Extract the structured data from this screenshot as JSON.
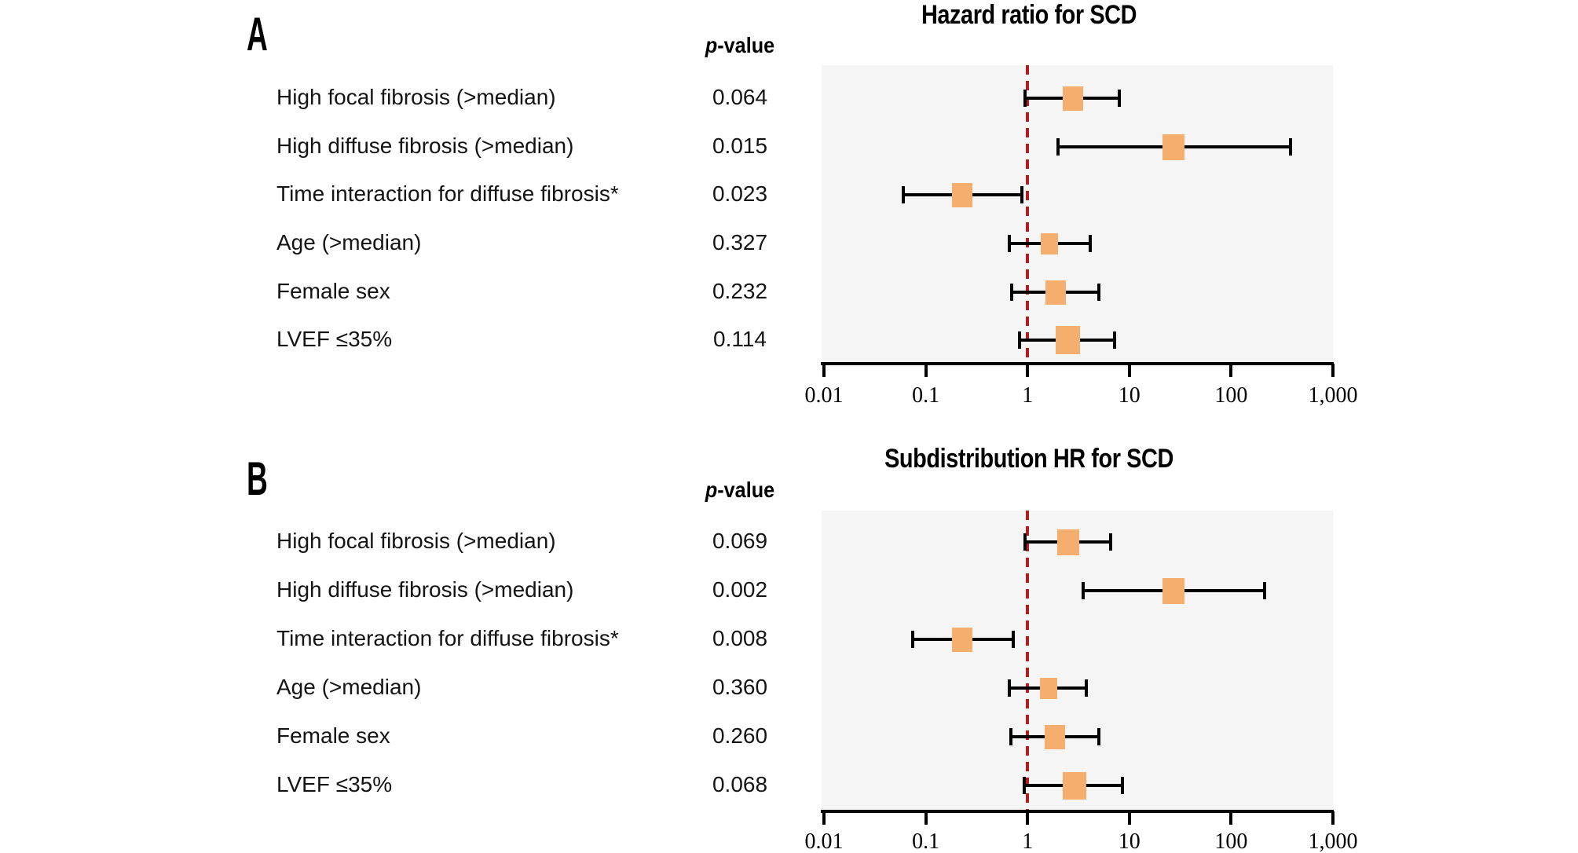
{
  "figure": {
    "background": "#ffffff"
  },
  "colors": {
    "marker": "#F5AE6D",
    "ref_line": "#B01E24",
    "plot_bg": "#F5F5F5",
    "axis": "#000000",
    "text": "#141414"
  },
  "axis": {
    "tick_labels": [
      "0.01",
      "0.1",
      "1",
      "10",
      "100",
      "1,000"
    ],
    "tick_values": [
      0.01,
      0.1,
      1,
      10,
      100,
      1000
    ],
    "scale": "log",
    "reference_value": 1
  },
  "panels": [
    {
      "letter": "A",
      "title": "Hazard ratio for SCD",
      "p_header": {
        "italic": "p",
        "rest": "-value"
      },
      "rows": [
        {
          "label": "High focal fibrosis (>median)",
          "p_value": "0.064",
          "hr": 2.8,
          "ci_low": 0.95,
          "ci_high": 8.0,
          "marker_size": 26
        },
        {
          "label": "High diffuse fibrosis (>median)",
          "p_value": "0.015",
          "hr": 27,
          "ci_low": 2.0,
          "ci_high": 380,
          "marker_size": 28
        },
        {
          "label": "Time interaction for diffuse fibrosis*",
          "p_value": "0.023",
          "hr": 0.23,
          "ci_low": 0.06,
          "ci_high": 0.88,
          "marker_size": 26
        },
        {
          "label": "Age (>median)",
          "p_value": "0.327",
          "hr": 1.65,
          "ci_low": 0.66,
          "ci_high": 4.1,
          "marker_size": 22
        },
        {
          "label": "Female sex",
          "p_value": "0.232",
          "hr": 1.9,
          "ci_low": 0.7,
          "ci_high": 5.0,
          "marker_size": 26
        },
        {
          "label": "LVEF ≤35%",
          "p_value": "0.114",
          "hr": 2.5,
          "ci_low": 0.84,
          "ci_high": 7.2,
          "marker_size": 31
        }
      ]
    },
    {
      "letter": "B",
      "title": "Subdistribution HR for SCD",
      "p_header": {
        "italic": "p",
        "rest": "-value"
      },
      "rows": [
        {
          "label": "High focal fibrosis (>median)",
          "p_value": "0.069",
          "hr": 2.5,
          "ci_low": 0.95,
          "ci_high": 6.6,
          "marker_size": 28
        },
        {
          "label": "High diffuse fibrosis (>median)",
          "p_value": "0.002",
          "hr": 27,
          "ci_low": 3.5,
          "ci_high": 215,
          "marker_size": 28
        },
        {
          "label": "Time interaction for diffuse fibrosis*",
          "p_value": "0.008",
          "hr": 0.23,
          "ci_low": 0.075,
          "ci_high": 0.72,
          "marker_size": 26
        },
        {
          "label": "Age (>median)",
          "p_value": "0.360",
          "hr": 1.6,
          "ci_low": 0.66,
          "ci_high": 3.8,
          "marker_size": 22
        },
        {
          "label": "Female sex",
          "p_value": "0.260",
          "hr": 1.85,
          "ci_low": 0.69,
          "ci_high": 5.0,
          "marker_size": 26
        },
        {
          "label": "LVEF ≤35%",
          "p_value": "0.068",
          "hr": 2.9,
          "ci_low": 0.93,
          "ci_high": 8.6,
          "marker_size": 30
        }
      ]
    }
  ],
  "chart_data": [
    {
      "type": "scatter",
      "subtype": "forest-plot",
      "title": "Hazard ratio for SCD",
      "xscale": "log",
      "xlim": [
        0.01,
        1000
      ],
      "x_ticks": [
        0.01,
        0.1,
        1,
        10,
        100,
        1000
      ],
      "reference_line_x": 1,
      "grid": false,
      "categories": [
        "High focal fibrosis (>median)",
        "High diffuse fibrosis (>median)",
        "Time interaction for diffuse fibrosis*",
        "Age (>median)",
        "Female sex",
        "LVEF ≤35%"
      ],
      "p_values": [
        0.064,
        0.015,
        0.023,
        0.327,
        0.232,
        0.114
      ],
      "hazard_ratio": [
        2.8,
        27,
        0.23,
        1.65,
        1.9,
        2.5
      ],
      "ci_low": [
        0.95,
        2.0,
        0.06,
        0.66,
        0.7,
        0.84
      ],
      "ci_high": [
        8.0,
        380,
        0.88,
        4.1,
        5.0,
        7.2
      ],
      "values_estimated_from_pixels": true
    },
    {
      "type": "scatter",
      "subtype": "forest-plot",
      "title": "Subdistribution HR for SCD",
      "xscale": "log",
      "xlim": [
        0.01,
        1000
      ],
      "x_ticks": [
        0.01,
        0.1,
        1,
        10,
        100,
        1000
      ],
      "reference_line_x": 1,
      "grid": false,
      "categories": [
        "High focal fibrosis (>median)",
        "High diffuse fibrosis (>median)",
        "Time interaction for diffuse fibrosis*",
        "Age (>median)",
        "Female sex",
        "LVEF ≤35%"
      ],
      "p_values": [
        0.069,
        0.002,
        0.008,
        0.36,
        0.26,
        0.068
      ],
      "hazard_ratio": [
        2.5,
        27,
        0.23,
        1.6,
        1.85,
        2.9
      ],
      "ci_low": [
        0.95,
        3.5,
        0.075,
        0.66,
        0.69,
        0.93
      ],
      "ci_high": [
        6.6,
        215,
        0.72,
        3.8,
        5.0,
        8.6
      ],
      "values_estimated_from_pixels": true
    }
  ]
}
